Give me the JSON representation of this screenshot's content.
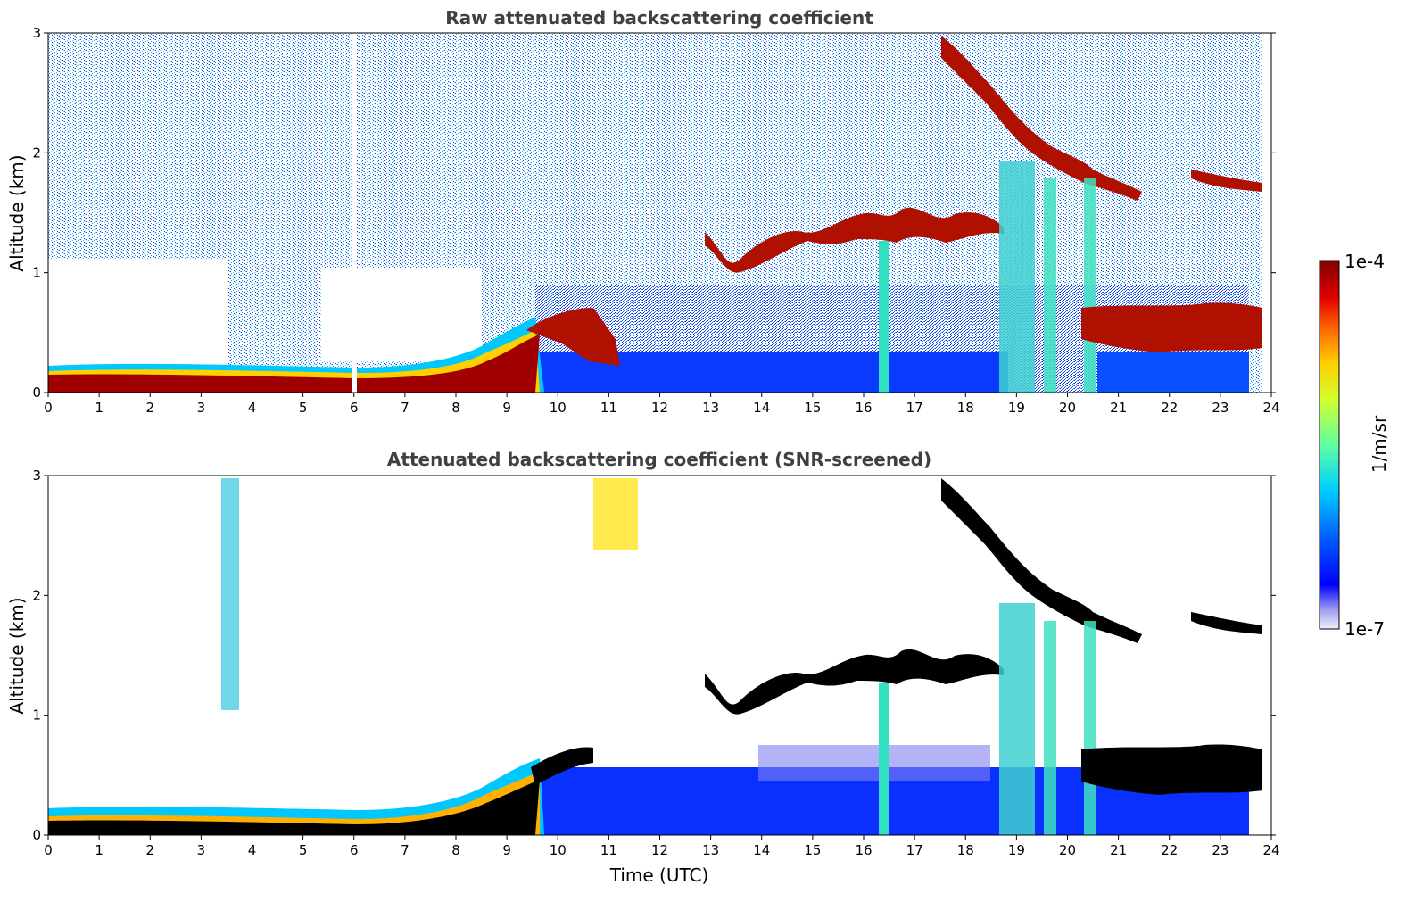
{
  "chart_data": [
    {
      "type": "heatmap",
      "title": "Raw attenuated backscattering coefficient",
      "xlabel": "",
      "ylabel": "Altitude (km)",
      "xlim": [
        0,
        24
      ],
      "ylim": [
        0,
        3
      ],
      "xticks": [
        "0",
        "1",
        "2",
        "3",
        "4",
        "5",
        "6",
        "7",
        "8",
        "9",
        "10",
        "11",
        "12",
        "13",
        "14",
        "15",
        "16",
        "17",
        "18",
        "19",
        "20",
        "21",
        "22",
        "23",
        "24"
      ],
      "yticks": [
        "0",
        "1",
        "2",
        "3"
      ],
      "screened": false,
      "layers": [
        {
          "desc": "boundary layer",
          "x": [
            0,
            2,
            3,
            4,
            5,
            6,
            7,
            8,
            8.5,
            9,
            9.5
          ],
          "top": [
            0.18,
            0.2,
            0.2,
            0.15,
            0.15,
            0.15,
            0.15,
            0.2,
            0.3,
            0.45,
            0.6
          ]
        },
        {
          "desc": "residual layer",
          "x": [
            9.5,
            10,
            10.5,
            11
          ],
          "top": [
            0.6,
            0.65,
            0.7,
            0.4
          ]
        },
        {
          "desc": "cloud layer",
          "x": [
            12.8,
            13.3,
            14,
            15,
            16,
            16.5,
            17,
            18,
            18.7
          ],
          "top": [
            1.4,
            1.05,
            1.35,
            1.4,
            1.5,
            1.3,
            1.45,
            1.45,
            1.4
          ]
        },
        {
          "desc": "descending cloud",
          "x": [
            17.5,
            18,
            18.5,
            19,
            19.5,
            20,
            20.5,
            21
          ],
          "top": [
            3.0,
            2.8,
            2.5,
            2.15,
            2.0,
            1.9,
            1.85,
            1.75
          ]
        },
        {
          "desc": "late boundary layer",
          "x": [
            20.4,
            21,
            22,
            23,
            23.8
          ],
          "top": [
            0.6,
            0.6,
            0.55,
            0.6,
            0.55
          ]
        },
        {
          "desc": "cloud layer late",
          "x": [
            22.8,
            23.3,
            23.8
          ],
          "top": [
            2.0,
            1.8,
            1.75
          ]
        }
      ]
    },
    {
      "type": "heatmap",
      "title": "Attenuated backscattering coefficient (SNR-screened)",
      "xlabel": "Time (UTC)",
      "ylabel": "Altitude (km)",
      "xlim": [
        0,
        24
      ],
      "ylim": [
        0,
        3
      ],
      "xticks": [
        "0",
        "1",
        "2",
        "3",
        "4",
        "5",
        "6",
        "7",
        "8",
        "9",
        "10",
        "11",
        "12",
        "13",
        "14",
        "15",
        "16",
        "17",
        "18",
        "19",
        "20",
        "21",
        "22",
        "23",
        "24"
      ],
      "yticks": [
        "0",
        "1",
        "2",
        "3"
      ],
      "screened": true
    }
  ],
  "colorbar": {
    "label": "1/m/sr",
    "max_label": "1e-4",
    "min_label": "1e-7",
    "colormap": "jet",
    "stops": [
      "#e8e8f8",
      "#0000ff",
      "#00bfff",
      "#7fff7f",
      "#ffff00",
      "#ff7f00",
      "#ff0000",
      "#7f0000"
    ]
  }
}
